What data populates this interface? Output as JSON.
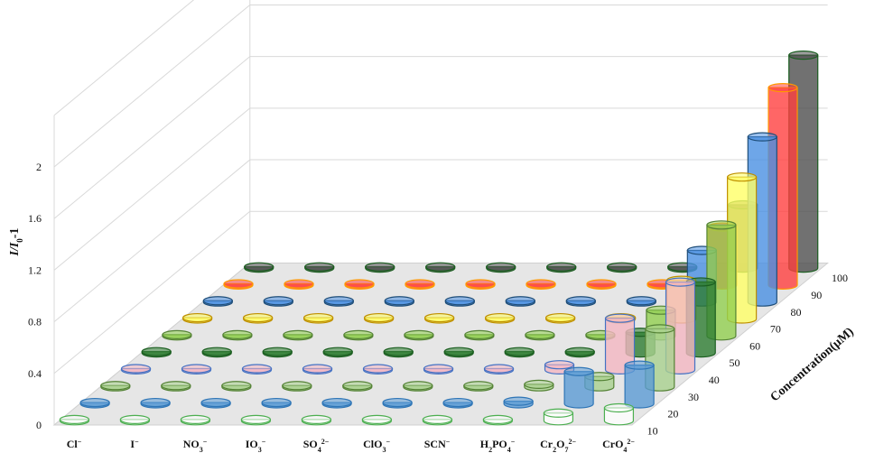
{
  "chart_data": {
    "type": "bar",
    "variant": "3d-cylinder",
    "ylabel": "I/I0-1",
    "ylabel_parts": {
      "a": "I",
      "slash": "/",
      "b": "I",
      "sub": "0",
      "rest": "-1"
    },
    "zlabel": "Concentration(μM)",
    "yticks": [
      "0",
      "0.4",
      "0.8",
      "1.2",
      "1.6",
      "2"
    ],
    "ylim": [
      0,
      2
    ],
    "grid": true,
    "categories": [
      {
        "base": "Cl",
        "sub": "",
        "sup": "−"
      },
      {
        "base": "I",
        "sub": "",
        "sup": "−"
      },
      {
        "base": "NO",
        "sub": "3",
        "sup": "−"
      },
      {
        "base": "IO",
        "sub": "3",
        "sup": "−"
      },
      {
        "base": "SO",
        "sub": "4",
        "sup": "2−"
      },
      {
        "base": "ClO",
        "sub": "3",
        "sup": "−"
      },
      {
        "base": "SCN",
        "sub": "",
        "sup": "−"
      },
      {
        "base": "H",
        "sub": "2",
        "sup": "",
        "base2": "PO",
        "sub2": "4",
        "sup2": "−"
      },
      {
        "base": "Cr",
        "sub": "2",
        "sup": "",
        "base2": "O",
        "sub2": "7",
        "sup2": "2−"
      },
      {
        "base": "CrO",
        "sub": "4",
        "sup": "2−"
      }
    ],
    "series": [
      {
        "name": "10",
        "color": "#ffffff",
        "edge": "#4caf50",
        "values": [
          0.01,
          0.01,
          0.01,
          0.01,
          0.01,
          0.01,
          0.01,
          0.01,
          0.06,
          0.1
        ]
      },
      {
        "name": "20",
        "color": "#5b9bd5",
        "edge": "#2e75b6",
        "values": [
          0.01,
          0.01,
          0.01,
          0.01,
          0.01,
          0.01,
          0.01,
          0.02,
          0.25,
          0.3
        ]
      },
      {
        "name": "30",
        "color": "#a9d18e",
        "edge": "#548235",
        "values": [
          0.01,
          0.01,
          0.01,
          0.01,
          0.01,
          0.01,
          0.01,
          0.02,
          0.08,
          0.45
        ]
      },
      {
        "name": "40",
        "color": "#f4b6c2",
        "edge": "#4472c4",
        "values": [
          0.01,
          0.01,
          0.01,
          0.01,
          0.01,
          0.01,
          0.01,
          0.04,
          0.4,
          0.68
        ]
      },
      {
        "name": "50",
        "color": "#2e7d32",
        "edge": "#1b5e20",
        "values": [
          0.01,
          0.01,
          0.01,
          0.01,
          0.01,
          0.01,
          0.01,
          0.01,
          0.16,
          0.55
        ]
      },
      {
        "name": "60",
        "color": "#92d050",
        "edge": "#548235",
        "values": [
          0.01,
          0.01,
          0.01,
          0.01,
          0.01,
          0.01,
          0.01,
          0.01,
          0.2,
          0.86
        ]
      },
      {
        "name": "70",
        "color": "#ffff66",
        "edge": "#bf9000",
        "values": [
          0.01,
          0.01,
          0.01,
          0.01,
          0.01,
          0.01,
          0.01,
          0.01,
          0.3,
          1.1
        ]
      },
      {
        "name": "80",
        "color": "#4a90e2",
        "edge": "#1f4e79",
        "values": [
          0.01,
          0.01,
          0.01,
          0.01,
          0.01,
          0.01,
          0.01,
          0.01,
          0.4,
          1.28
        ]
      },
      {
        "name": "90",
        "color": "#ff4040",
        "edge": "#ff9900",
        "values": [
          0.01,
          0.01,
          0.01,
          0.01,
          0.01,
          0.01,
          0.01,
          0.01,
          0.45,
          1.53
        ]
      },
      {
        "name": "100",
        "color": "#4d4d4d",
        "edge": "#1b5e20",
        "values": [
          0.01,
          0.01,
          0.01,
          0.01,
          0.01,
          0.01,
          0.01,
          0.01,
          0.49,
          1.65
        ]
      }
    ]
  }
}
